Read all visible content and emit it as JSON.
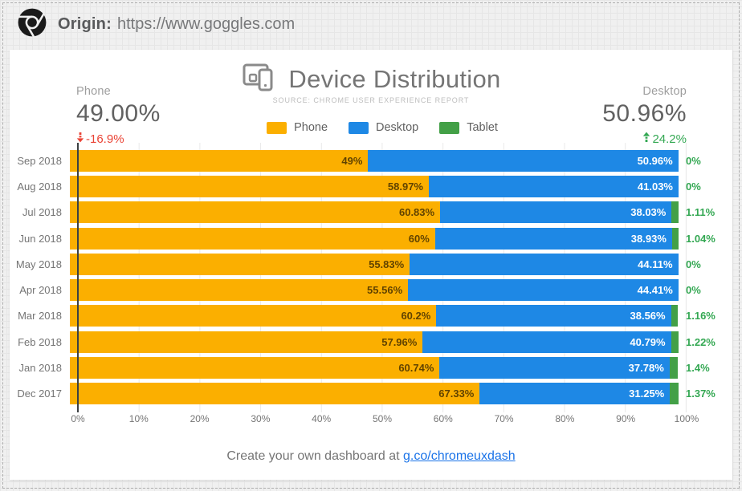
{
  "header": {
    "origin_label": "Origin:",
    "origin_url": "https://www.goggles.com"
  },
  "chart": {
    "title": "Device Distribution",
    "subtitle": "SOURCE: CHROME USER EXPERIENCE REPORT",
    "stats": {
      "left": {
        "label": "Phone",
        "value": "49.00%",
        "delta": "-16.9%",
        "direction": "down",
        "color": "#EA4335"
      },
      "right": {
        "label": "Desktop",
        "value": "50.96%",
        "delta": "24.2%",
        "direction": "up",
        "color": "#34A853"
      }
    }
  },
  "chart_data": {
    "type": "bar",
    "stacked": true,
    "orientation": "horizontal",
    "xlim": [
      0,
      100
    ],
    "grid": true,
    "legend_position": "top-center",
    "categories": [
      "Sep 2018",
      "Aug 2018",
      "Jul 2018",
      "Jun 2018",
      "May 2018",
      "Apr 2018",
      "Mar 2018",
      "Feb 2018",
      "Jan 2018",
      "Dec 2017"
    ],
    "series": [
      {
        "name": "Phone",
        "color": "#FBAF00",
        "values": [
          49,
          58.97,
          60.83,
          60,
          55.83,
          55.56,
          60.2,
          57.96,
          60.74,
          67.33
        ],
        "labels": [
          "49%",
          "58.97%",
          "60.83%",
          "60%",
          "55.83%",
          "55.56%",
          "60.2%",
          "57.96%",
          "60.74%",
          "67.33%"
        ]
      },
      {
        "name": "Desktop",
        "color": "#1E88E5",
        "values": [
          50.96,
          41.03,
          38.03,
          38.93,
          44.11,
          44.41,
          38.56,
          40.79,
          37.78,
          31.25
        ],
        "labels": [
          "50.96%",
          "41.03%",
          "38.03%",
          "38.93%",
          "44.11%",
          "44.41%",
          "38.56%",
          "40.79%",
          "37.78%",
          "31.25%"
        ]
      },
      {
        "name": "Tablet",
        "color": "#43A047",
        "values": [
          0,
          0,
          1.11,
          1.04,
          0,
          0,
          1.16,
          1.22,
          1.4,
          1.37
        ],
        "labels": [
          "0%",
          "0%",
          "1.11%",
          "1.04%",
          "0%",
          "0%",
          "1.16%",
          "1.22%",
          "1.4%",
          "1.37%"
        ]
      }
    ],
    "x_ticks": [
      "0%",
      "10%",
      "20%",
      "30%",
      "40%",
      "50%",
      "60%",
      "70%",
      "80%",
      "90%",
      "100%"
    ]
  },
  "footer": {
    "text": "Create your own dashboard at ",
    "link_label": "g.co/chromeuxdash"
  }
}
